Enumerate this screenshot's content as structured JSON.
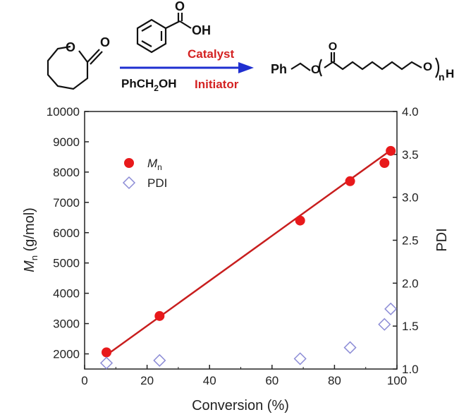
{
  "scheme": {
    "reagent_acid_label": "OH",
    "reagent_acid_carbonyl": "O",
    "lactone_oxygens": [
      "O",
      "O"
    ],
    "catalyst_label": "Catalyst",
    "initiator_label": "Initiator",
    "alcohol_label_parts": [
      "PhCH",
      "2",
      "OH"
    ],
    "product_parts": {
      "ph": "Ph",
      "o_left": "O",
      "carbonyl_o": "O",
      "o_right": "O",
      "n": "n",
      "h": "H"
    },
    "colors": {
      "catalyst": "#d42222",
      "initiator": "#d42222",
      "arrow": "#1f2fd0"
    }
  },
  "chart_data": {
    "type": "scatter",
    "title": "",
    "xlabel": "Conversion (%)",
    "ylabel_left_parts": [
      "M",
      "n",
      " (g/mol)"
    ],
    "ylabel_right": "PDI",
    "xlim": [
      0,
      100
    ],
    "ylim_left": [
      1500,
      10000
    ],
    "ylim_right": [
      1.0,
      4.0
    ],
    "x_ticks": [
      0,
      20,
      40,
      60,
      80,
      100
    ],
    "y_left_ticks": [
      2000,
      3000,
      4000,
      5000,
      6000,
      7000,
      8000,
      9000,
      10000
    ],
    "y_right_ticks": [
      "1.0",
      "1.5",
      "2.0",
      "2.5",
      "3.0",
      "3.5",
      "4.0"
    ],
    "legend_position": "top-left",
    "series": [
      {
        "name_parts": [
          "M",
          "n"
        ],
        "axis": "left",
        "marker": "filled-circle",
        "color": "#e8191b",
        "x": [
          7,
          24,
          69,
          85,
          96,
          98
        ],
        "y": [
          2050,
          3250,
          6400,
          7700,
          8300,
          8700
        ]
      },
      {
        "name": "PDI",
        "axis": "right",
        "marker": "open-diamond",
        "color": "#8c8cd6",
        "x": [
          7,
          24,
          69,
          85,
          96,
          98
        ],
        "y": [
          1.07,
          1.1,
          1.12,
          1.25,
          1.52,
          1.7
        ]
      }
    ],
    "fit_line": {
      "series": "Mn",
      "color": "#c81e1e",
      "x": [
        7,
        98
      ],
      "y": [
        1960,
        8720
      ]
    }
  }
}
